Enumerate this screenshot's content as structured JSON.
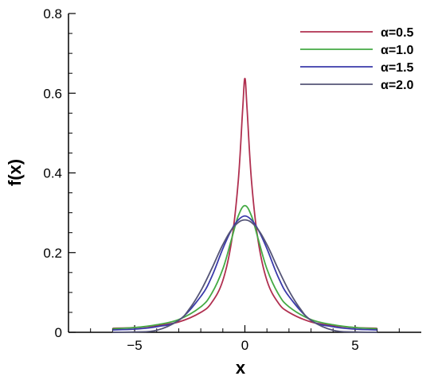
{
  "chart_data": {
    "type": "line",
    "xlabel": "x",
    "ylabel": "f(x)",
    "xlim": [
      -8,
      8
    ],
    "ylim": [
      0,
      0.8
    ],
    "x_ticks": [
      {
        "value": -5,
        "label": "−5"
      },
      {
        "value": 0,
        "label": "0"
      },
      {
        "value": 5,
        "label": "5"
      }
    ],
    "y_ticks": [
      {
        "value": 0,
        "label": "0"
      },
      {
        "value": 0.2,
        "label": "0.2"
      },
      {
        "value": 0.4,
        "label": "0.4"
      },
      {
        "value": 0.6,
        "label": "0.6"
      },
      {
        "value": 0.8,
        "label": "0.8"
      }
    ],
    "grid": false,
    "legend_position": "top-right",
    "series": [
      {
        "name": "α=0.5",
        "color": "#b03050",
        "x": [
          -6,
          -5,
          -4,
          -3,
          -2,
          -1.5,
          -1,
          -0.6,
          -0.3,
          -0.1,
          0,
          0.1,
          0.3,
          0.6,
          1,
          1.5,
          2,
          3,
          4,
          5,
          6
        ],
        "y": [
          0.01,
          0.012,
          0.017,
          0.026,
          0.05,
          0.075,
          0.13,
          0.23,
          0.38,
          0.56,
          0.637,
          0.56,
          0.38,
          0.23,
          0.13,
          0.075,
          0.05,
          0.026,
          0.017,
          0.012,
          0.01
        ]
      },
      {
        "name": "α=1.0",
        "color": "#44aa44",
        "x": [
          -6,
          -5,
          -4,
          -3,
          -2,
          -1.5,
          -1,
          -0.6,
          -0.3,
          0,
          0.3,
          0.6,
          1,
          1.5,
          2,
          3,
          4,
          5,
          6
        ],
        "y": [
          0.009,
          0.012,
          0.019,
          0.032,
          0.064,
          0.098,
          0.159,
          0.235,
          0.292,
          0.318,
          0.292,
          0.235,
          0.159,
          0.098,
          0.064,
          0.032,
          0.019,
          0.012,
          0.009
        ]
      },
      {
        "name": "α=1.5",
        "color": "#3a3aaa",
        "x": [
          -6,
          -5,
          -4,
          -3,
          -2,
          -1.5,
          -1,
          -0.6,
          -0.3,
          0,
          0.3,
          0.6,
          1,
          1.5,
          2,
          3,
          4,
          5,
          6
        ],
        "y": [
          0.006,
          0.008,
          0.014,
          0.03,
          0.09,
          0.14,
          0.21,
          0.258,
          0.282,
          0.292,
          0.282,
          0.258,
          0.21,
          0.14,
          0.09,
          0.03,
          0.014,
          0.008,
          0.006
        ]
      },
      {
        "name": "α=2.0",
        "color": "#555577",
        "x": [
          -6,
          -5,
          -4,
          -3,
          -2.5,
          -2,
          -1.5,
          -1,
          -0.5,
          0,
          0.5,
          1,
          1.5,
          2,
          2.5,
          3,
          4,
          5,
          6
        ],
        "y": [
          0.0,
          0.001,
          0.005,
          0.03,
          0.06,
          0.104,
          0.16,
          0.22,
          0.265,
          0.282,
          0.265,
          0.22,
          0.16,
          0.104,
          0.06,
          0.03,
          0.005,
          0.001,
          0.0
        ]
      }
    ]
  }
}
